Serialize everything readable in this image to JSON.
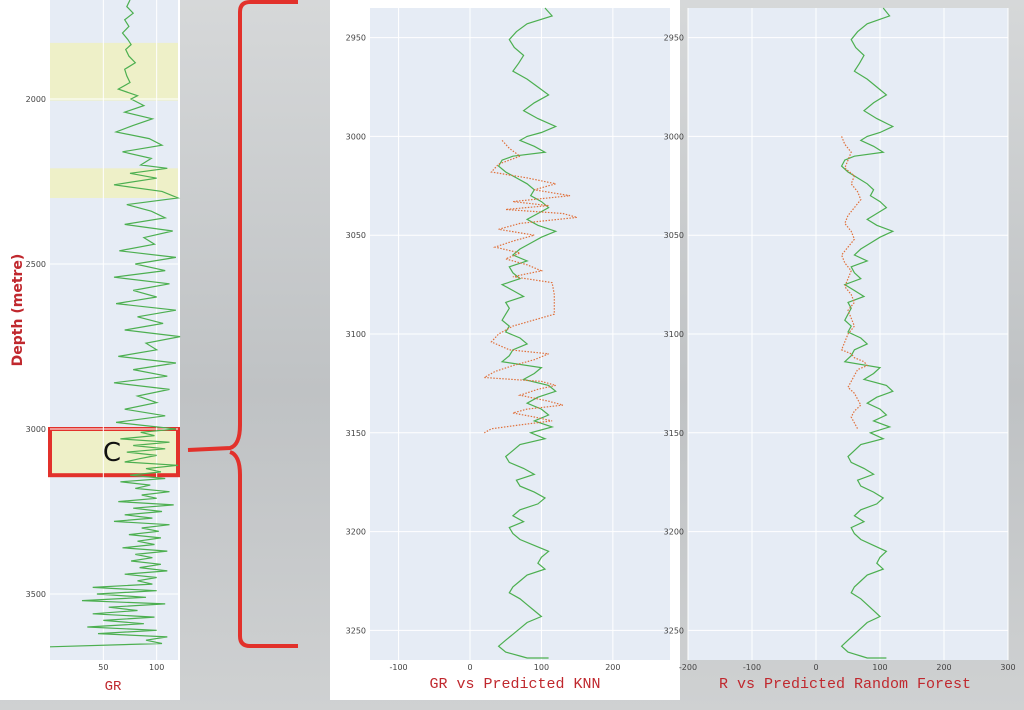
{
  "zone_label": "C",
  "chart_data": [
    {
      "type": "line",
      "title": "",
      "xlabel": "GR",
      "ylabel": "Depth (metre)",
      "xlim": [
        0,
        120
      ],
      "ylim": [
        1700,
        3700
      ],
      "y_inverted": true,
      "x_ticks": [
        50,
        100
      ],
      "y_ticks": [
        2000,
        2500,
        3000,
        3500
      ],
      "grid": true,
      "highlight_bands": [
        {
          "y_from": 1830,
          "y_to": 2005,
          "color": "#eef0c8"
        },
        {
          "y_from": 2210,
          "y_to": 2300,
          "color": "#eef0c8"
        },
        {
          "y_from": 3000,
          "y_to": 3140,
          "color": "#eef0c8",
          "label": "C"
        }
      ],
      "series": [
        {
          "color": "#4caf50",
          "x": [
            75,
            72,
            78,
            70,
            74,
            68,
            73,
            76,
            71,
            74,
            80,
            70,
            72,
            75,
            64,
            82,
            76,
            88,
            70,
            96,
            78,
            62,
            93,
            105,
            68,
            95,
            85,
            110,
            75,
            100,
            60,
            105,
            120,
            72,
            95,
            108,
            70,
            115,
            88,
            98,
            65,
            118,
            80,
            108,
            60,
            112,
            78,
            100,
            62,
            118,
            82,
            106,
            70,
            122,
            90,
            100,
            64,
            118,
            78,
            110,
            60,
            112,
            82,
            100,
            70,
            108,
            62,
            118,
            85,
            98,
            66,
            112,
            78,
            108,
            72,
            100,
            84,
            70,
            120,
            90,
            104,
            75,
            108,
            66,
            94,
            80,
            112,
            86,
            100,
            64,
            116,
            78,
            105,
            70,
            96,
            60,
            112,
            86,
            102,
            74,
            104,
            82,
            98,
            68,
            110,
            80,
            96,
            76,
            104,
            84,
            110,
            70,
            100,
            82,
            96,
            40,
            100,
            44,
            90,
            30,
            108,
            55,
            82,
            40,
            98,
            50,
            88,
            35,
            100,
            45,
            110,
            90,
            105,
            0
          ],
          "y": [
            1700,
            1720,
            1740,
            1760,
            1780,
            1800,
            1820,
            1835,
            1850,
            1870,
            1890,
            1910,
            1930,
            1950,
            1970,
            1990,
            2000,
            2020,
            2040,
            2060,
            2080,
            2100,
            2120,
            2140,
            2160,
            2180,
            2200,
            2210,
            2225,
            2240,
            2260,
            2280,
            2300,
            2320,
            2340,
            2360,
            2380,
            2400,
            2420,
            2440,
            2460,
            2480,
            2500,
            2520,
            2540,
            2560,
            2580,
            2600,
            2620,
            2640,
            2660,
            2680,
            2700,
            2720,
            2740,
            2760,
            2780,
            2800,
            2820,
            2840,
            2860,
            2880,
            2900,
            2920,
            2940,
            2960,
            2980,
            3000,
            3010,
            3020,
            3030,
            3040,
            3050,
            3060,
            3070,
            3080,
            3090,
            3100,
            3110,
            3120,
            3130,
            3140,
            3150,
            3160,
            3170,
            3180,
            3190,
            3200,
            3210,
            3220,
            3230,
            3240,
            3250,
            3260,
            3270,
            3280,
            3290,
            3300,
            3310,
            3320,
            3330,
            3340,
            3350,
            3360,
            3370,
            3380,
            3390,
            3400,
            3410,
            3420,
            3430,
            3440,
            3450,
            3460,
            3470,
            3480,
            3490,
            3500,
            3510,
            3520,
            3530,
            3540,
            3550,
            3560,
            3570,
            3580,
            3590,
            3600,
            3610,
            3620,
            3630,
            3640,
            3650,
            3660
          ]
        }
      ]
    },
    {
      "type": "line",
      "title": "GR vs Predicted KNN",
      "xlabel": "",
      "ylabel": "",
      "xlim": [
        -140,
        280
      ],
      "ylim": [
        2935,
        3265
      ],
      "y_inverted": true,
      "x_ticks": [
        -100,
        0,
        100,
        200
      ],
      "y_ticks": [
        2950,
        3000,
        3050,
        3100,
        3150,
        3200,
        3250
      ],
      "grid": true,
      "series": [
        {
          "color": "#4caf50",
          "dash": "solid",
          "x": [
            105,
            115,
            80,
            65,
            55,
            62,
            75,
            68,
            60,
            80,
            95,
            110,
            90,
            75,
            95,
            120,
            100,
            80,
            70,
            90,
            105,
            60,
            45,
            40,
            50,
            65,
            80,
            90,
            85,
            100,
            110,
            95,
            80,
            95,
            120,
            100,
            85,
            70,
            60,
            80,
            55,
            60,
            70,
            45,
            60,
            75,
            50,
            55,
            50,
            45,
            55,
            50,
            70,
            80,
            60,
            55,
            45,
            100,
            90,
            75,
            110,
            120,
            95,
            80,
            100,
            110,
            90,
            115,
            85,
            105,
            70,
            60,
            50,
            55,
            75,
            90,
            65,
            70,
            90,
            105,
            95,
            70,
            60,
            75,
            55,
            60,
            70,
            90,
            110,
            100,
            95,
            105,
            80,
            70,
            60,
            55,
            70,
            80,
            90,
            100,
            80,
            70,
            60,
            50,
            40,
            50,
            60,
            70,
            80,
            90,
            100,
            110,
            100,
            90,
            85,
            95,
            100
          ],
          "y": [
            2935,
            2939,
            2943,
            2947,
            2951,
            2955,
            2959,
            2963,
            2967,
            2971,
            2975,
            2979,
            2983,
            2987,
            2991,
            2995,
            2998,
            3000,
            3002,
            3005,
            3008,
            3010,
            3012,
            3015,
            3018,
            3021,
            3024,
            3027,
            3030,
            3033,
            3036,
            3039,
            3042,
            3045,
            3048,
            3051,
            3054,
            3057,
            3060,
            3063,
            3066,
            3069,
            3072,
            3075,
            3078,
            3081,
            3084,
            3087,
            3090,
            3093,
            3096,
            3099,
            3102,
            3105,
            3108,
            3111,
            3114,
            3117,
            3120,
            3123,
            3126,
            3129,
            3132,
            3135,
            3138,
            3141,
            3144,
            3147,
            3150,
            3153,
            3156,
            3159,
            3162,
            3165,
            3168,
            3171,
            3174,
            3177,
            3180,
            3183,
            3186,
            3189,
            3192,
            3195,
            3198,
            3201,
            3204,
            3207,
            3210,
            3213,
            3216,
            3219,
            3222,
            3225,
            3228,
            3231,
            3234,
            3237,
            3240,
            3243,
            3246,
            3249,
            3252,
            3255,
            3258,
            3261,
            3262,
            3263,
            3264,
            3264,
            3264,
            3264,
            3264,
            3264,
            3264,
            3264,
            3264
          ]
        },
        {
          "color": "#e0703a",
          "dash": "dotted",
          "x": [
            45,
            55,
            70,
            40,
            30,
            80,
            120,
            90,
            140,
            60,
            110,
            50,
            130,
            150,
            70,
            40,
            90,
            60,
            35,
            70,
            50,
            80,
            100,
            60,
            115,
            118,
            118,
            60,
            40,
            30,
            55,
            110,
            90,
            60,
            35,
            20,
            100,
            120,
            95,
            70,
            110,
            130,
            80,
            60,
            90,
            115,
            70,
            30,
            20
          ],
          "y": [
            3002,
            3006,
            3010,
            3014,
            3018,
            3021,
            3024,
            3027,
            3030,
            3033,
            3035,
            3037,
            3039,
            3041,
            3044,
            3047,
            3050,
            3053,
            3056,
            3059,
            3062,
            3065,
            3068,
            3071,
            3074,
            3080,
            3090,
            3096,
            3100,
            3104,
            3108,
            3110,
            3113,
            3116,
            3119,
            3122,
            3124,
            3126,
            3128,
            3131,
            3134,
            3136,
            3138,
            3140,
            3142,
            3144,
            3146,
            3148,
            3150
          ]
        }
      ]
    },
    {
      "type": "line",
      "title": "R vs Predicted Random Forest",
      "xlabel": "",
      "ylabel": "",
      "xlim": [
        -200,
        300
      ],
      "ylim": [
        2935,
        3265
      ],
      "y_inverted": true,
      "x_ticks": [
        -200,
        -100,
        0,
        100,
        200,
        300
      ],
      "y_ticks": [
        2950,
        3000,
        3050,
        3100,
        3150,
        3200,
        3250
      ],
      "grid": true,
      "series": [
        {
          "color": "#4caf50",
          "dash": "solid",
          "x": [
            105,
            115,
            80,
            65,
            55,
            62,
            75,
            68,
            60,
            80,
            95,
            110,
            90,
            75,
            95,
            120,
            100,
            80,
            70,
            90,
            105,
            60,
            45,
            40,
            50,
            65,
            80,
            90,
            85,
            100,
            110,
            95,
            80,
            95,
            120,
            100,
            85,
            70,
            60,
            80,
            55,
            60,
            70,
            45,
            60,
            75,
            50,
            55,
            50,
            45,
            55,
            50,
            70,
            80,
            60,
            55,
            45,
            100,
            90,
            75,
            110,
            120,
            95,
            80,
            100,
            110,
            90,
            115,
            85,
            105,
            70,
            60,
            50,
            55,
            75,
            90,
            65,
            70,
            90,
            105,
            95,
            70,
            60,
            75,
            55,
            60,
            70,
            90,
            110,
            100,
            95,
            105,
            80,
            70,
            60,
            55,
            70,
            80,
            90,
            100,
            80,
            70,
            60,
            50,
            40,
            50,
            60,
            70,
            80,
            90,
            100,
            110,
            100,
            90,
            85,
            95,
            100
          ],
          "y": [
            2935,
            2939,
            2943,
            2947,
            2951,
            2955,
            2959,
            2963,
            2967,
            2971,
            2975,
            2979,
            2983,
            2987,
            2991,
            2995,
            2998,
            3000,
            3002,
            3005,
            3008,
            3010,
            3012,
            3015,
            3018,
            3021,
            3024,
            3027,
            3030,
            3033,
            3036,
            3039,
            3042,
            3045,
            3048,
            3051,
            3054,
            3057,
            3060,
            3063,
            3066,
            3069,
            3072,
            3075,
            3078,
            3081,
            3084,
            3087,
            3090,
            3093,
            3096,
            3099,
            3102,
            3105,
            3108,
            3111,
            3114,
            3117,
            3120,
            3123,
            3126,
            3129,
            3132,
            3135,
            3138,
            3141,
            3144,
            3147,
            3150,
            3153,
            3156,
            3159,
            3162,
            3165,
            3168,
            3171,
            3174,
            3177,
            3180,
            3183,
            3186,
            3189,
            3192,
            3195,
            3198,
            3201,
            3204,
            3207,
            3210,
            3213,
            3216,
            3219,
            3222,
            3225,
            3228,
            3231,
            3234,
            3237,
            3240,
            3243,
            3246,
            3249,
            3252,
            3255,
            3258,
            3261,
            3262,
            3263,
            3264,
            3264,
            3264,
            3264,
            3264,
            3264,
            3264,
            3264,
            3264
          ]
        },
        {
          "color": "#e0703a",
          "dash": "dotted",
          "x": [
            40,
            45,
            55,
            50,
            45,
            60,
            55,
            65,
            70,
            60,
            50,
            45,
            55,
            60,
            50,
            40,
            45,
            55,
            50,
            45,
            55,
            60,
            50,
            55,
            60,
            50,
            45,
            40,
            55,
            60,
            75,
            80,
            65,
            60,
            55,
            50,
            60,
            65,
            70,
            60,
            55,
            60,
            65
          ],
          "y": [
            3000,
            3004,
            3008,
            3012,
            3016,
            3020,
            3024,
            3028,
            3032,
            3036,
            3040,
            3044,
            3048,
            3052,
            3056,
            3060,
            3064,
            3068,
            3072,
            3076,
            3080,
            3084,
            3088,
            3092,
            3096,
            3100,
            3104,
            3108,
            3110,
            3112,
            3114,
            3116,
            3118,
            3121,
            3124,
            3127,
            3130,
            3133,
            3136,
            3139,
            3142,
            3145,
            3148
          ]
        }
      ]
    }
  ]
}
